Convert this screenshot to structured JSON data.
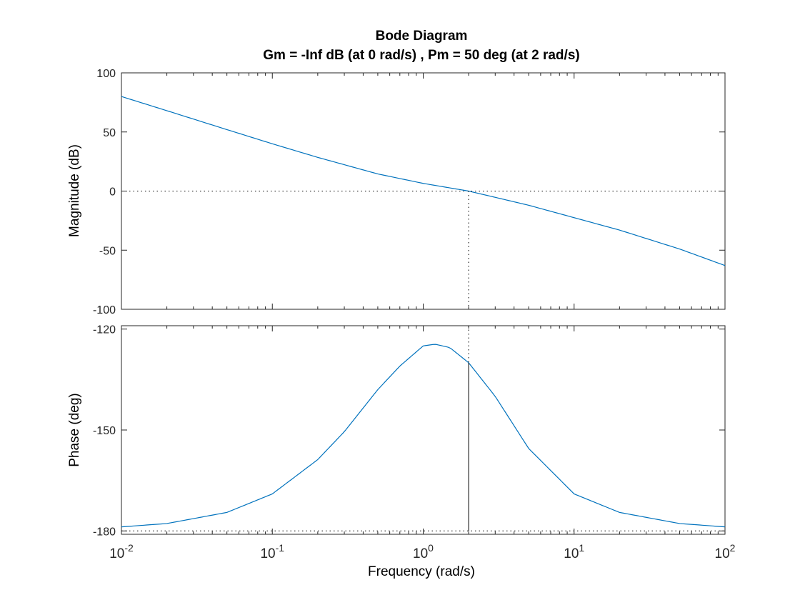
{
  "chart_data": {
    "type": "line",
    "title": "Bode Diagram",
    "subtitle": "Gm = -Inf dB (at 0 rad/s) ,  Pm = 50 deg (at 2 rad/s)",
    "xlabel": "Frequency  (rad/s)",
    "xscale": "log",
    "xlim": [
      0.01,
      100
    ],
    "x_ticks": [
      {
        "value": 0.01,
        "base": "10",
        "exp": "-2"
      },
      {
        "value": 0.1,
        "base": "10",
        "exp": "-1"
      },
      {
        "value": 1,
        "base": "10",
        "exp": "0"
      },
      {
        "value": 10,
        "base": "10",
        "exp": "1"
      },
      {
        "value": 100,
        "base": "10",
        "exp": "2"
      }
    ],
    "grid": false,
    "series_color": "#0072BD",
    "crossover_frequency": 2,
    "panels": [
      {
        "ylabel": "Magnitude (dB)",
        "ylim": [
          -100,
          100
        ],
        "y_ticks": [
          "100",
          "50",
          "0",
          "-50",
          "-100"
        ],
        "y_tick_values": [
          100,
          50,
          0,
          -50,
          -100
        ],
        "reference_y": 0,
        "series": [
          {
            "x": [
              0.01,
              0.02,
              0.05,
              0.1,
              0.2,
              0.5,
              1,
              2,
              5,
              10,
              20,
              50,
              100
            ],
            "y": [
              80,
              68,
              52,
              40,
              28.5,
              14.5,
              6.5,
              0,
              -12,
              -22.5,
              -33,
              -49,
              -63
            ]
          }
        ]
      },
      {
        "ylabel": "Phase (deg)",
        "ylim": [
          -181,
          -119
        ],
        "y_ticks": [
          "-120",
          "-150",
          "-180"
        ],
        "y_tick_values": [
          -120,
          -150,
          -180
        ],
        "reference_y": -180,
        "series": [
          {
            "x": [
              0.01,
              0.02,
              0.05,
              0.1,
              0.2,
              0.3,
              0.5,
              0.7,
              1,
              1.2,
              1.5,
              2,
              3,
              5,
              10,
              20,
              50,
              100
            ],
            "y": [
              -178.8,
              -177.8,
              -174.5,
              -169,
              -158.8,
              -150.5,
              -138,
              -131,
              -125,
              -124.5,
              -125.5,
              -130,
              -140,
              -155.5,
              -169,
              -174.5,
              -177.8,
              -178.8
            ]
          }
        ]
      }
    ]
  }
}
